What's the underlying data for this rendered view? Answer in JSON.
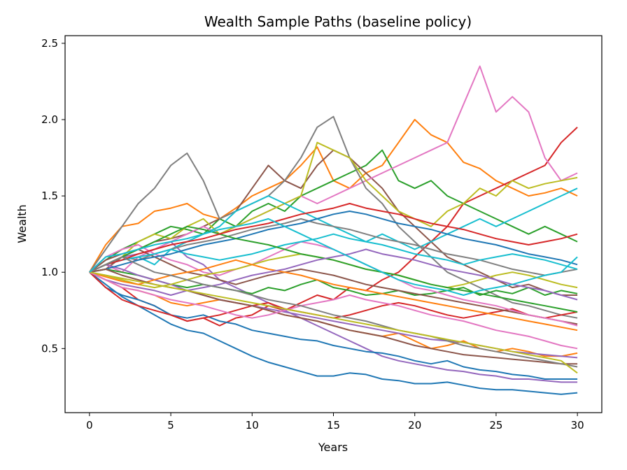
{
  "chart_data": {
    "type": "line",
    "title": "Wealth Sample Paths (baseline policy)",
    "xlabel": "Years",
    "ylabel": "Wealth",
    "xlim": [
      -1.5,
      31.5
    ],
    "ylim": [
      0.08,
      2.55
    ],
    "xticks": [
      0,
      5,
      10,
      15,
      20,
      25,
      30
    ],
    "yticks": [
      0.5,
      1.0,
      1.5,
      2.0,
      2.5
    ],
    "xtick_labels": [
      "0",
      "5",
      "10",
      "15",
      "20",
      "25",
      "30"
    ],
    "ytick_labels": [
      "0.5",
      "1.0",
      "1.5",
      "2.0",
      "2.5"
    ],
    "grid": false,
    "legend": "none",
    "colors": [
      "#1f77b4",
      "#ff7f0e",
      "#2ca02c",
      "#d62728",
      "#9467bd",
      "#8c564b",
      "#e377c2",
      "#7f7f7f",
      "#bcbd22",
      "#17becf"
    ],
    "x": [
      0,
      1,
      2,
      3,
      4,
      5,
      6,
      7,
      8,
      9,
      10,
      11,
      12,
      13,
      14,
      15,
      16,
      17,
      18,
      19,
      20,
      21,
      22,
      23,
      24,
      25,
      26,
      27,
      28,
      29,
      30
    ],
    "series": [
      {
        "values": [
          1.0,
          0.92,
          0.84,
          0.78,
          0.72,
          0.66,
          0.62,
          0.6,
          0.55,
          0.5,
          0.45,
          0.41,
          0.38,
          0.35,
          0.32,
          0.32,
          0.34,
          0.33,
          0.3,
          0.29,
          0.27,
          0.27,
          0.28,
          0.26,
          0.24,
          0.23,
          0.23,
          0.22,
          0.21,
          0.2,
          0.21
        ]
      },
      {
        "values": [
          1.0,
          1.18,
          1.3,
          1.32,
          1.4,
          1.42,
          1.45,
          1.38,
          1.35,
          1.42,
          1.5,
          1.55,
          1.6,
          1.7,
          1.82,
          1.6,
          1.55,
          1.65,
          1.7,
          1.85,
          2.0,
          1.9,
          1.85,
          1.72,
          1.68,
          1.6,
          1.55,
          1.5,
          1.52,
          1.55,
          1.5
        ]
      },
      {
        "values": [
          1.0,
          1.08,
          1.15,
          1.2,
          1.25,
          1.3,
          1.28,
          1.25,
          1.35,
          1.3,
          1.4,
          1.45,
          1.4,
          1.5,
          1.55,
          1.6,
          1.65,
          1.7,
          1.8,
          1.6,
          1.55,
          1.6,
          1.5,
          1.45,
          1.4,
          1.35,
          1.3,
          1.25,
          1.3,
          1.25,
          1.2
        ]
      },
      {
        "values": [
          1.0,
          0.95,
          0.9,
          0.82,
          0.78,
          0.72,
          0.68,
          0.7,
          0.65,
          0.7,
          0.72,
          0.78,
          0.75,
          0.8,
          0.85,
          0.82,
          0.9,
          0.88,
          0.95,
          1.0,
          1.1,
          1.2,
          1.3,
          1.45,
          1.5,
          1.55,
          1.6,
          1.65,
          1.7,
          1.85,
          1.95
        ]
      },
      {
        "values": [
          1.0,
          1.05,
          1.1,
          1.12,
          1.15,
          1.2,
          1.1,
          1.05,
          0.95,
          0.9,
          0.85,
          0.8,
          0.75,
          0.7,
          0.65,
          0.6,
          0.55,
          0.5,
          0.45,
          0.42,
          0.4,
          0.38,
          0.36,
          0.35,
          0.33,
          0.32,
          0.3,
          0.3,
          0.29,
          0.28,
          0.28
        ]
      },
      {
        "values": [
          1.0,
          1.02,
          1.1,
          1.15,
          1.2,
          1.22,
          1.25,
          1.3,
          1.35,
          1.4,
          1.55,
          1.7,
          1.6,
          1.55,
          1.7,
          1.8,
          1.75,
          1.65,
          1.55,
          1.4,
          1.3,
          1.2,
          1.1,
          1.05,
          1.0,
          0.95,
          0.9,
          0.92,
          0.88,
          0.85,
          0.85
        ]
      },
      {
        "values": [
          1.0,
          1.05,
          1.0,
          1.1,
          1.15,
          1.2,
          1.25,
          1.3,
          1.25,
          1.3,
          1.35,
          1.4,
          1.45,
          1.5,
          1.45,
          1.5,
          1.55,
          1.6,
          1.65,
          1.7,
          1.75,
          1.8,
          1.85,
          2.1,
          2.35,
          2.05,
          2.15,
          2.05,
          1.75,
          1.6,
          1.65
        ]
      },
      {
        "values": [
          1.0,
          1.15,
          1.3,
          1.45,
          1.55,
          1.7,
          1.78,
          1.6,
          1.35,
          1.4,
          1.45,
          1.5,
          1.6,
          1.75,
          1.95,
          2.02,
          1.75,
          1.55,
          1.45,
          1.3,
          1.2,
          1.1,
          1.0,
          0.95,
          0.9,
          0.85,
          0.8,
          0.78,
          0.75,
          0.72,
          0.7
        ]
      },
      {
        "values": [
          1.0,
          1.05,
          1.1,
          1.2,
          1.25,
          1.22,
          1.3,
          1.35,
          1.25,
          1.3,
          1.35,
          1.4,
          1.45,
          1.5,
          1.85,
          1.8,
          1.75,
          1.6,
          1.5,
          1.4,
          1.35,
          1.3,
          1.4,
          1.45,
          1.55,
          1.5,
          1.6,
          1.55,
          1.58,
          1.6,
          1.62
        ]
      },
      {
        "values": [
          1.0,
          1.05,
          1.08,
          1.1,
          1.05,
          1.15,
          1.2,
          1.25,
          1.3,
          1.4,
          1.45,
          1.5,
          1.45,
          1.4,
          1.35,
          1.3,
          1.25,
          1.2,
          1.25,
          1.2,
          1.15,
          1.2,
          1.25,
          1.3,
          1.35,
          1.3,
          1.35,
          1.4,
          1.45,
          1.5,
          1.55
        ]
      },
      {
        "values": [
          1.0,
          0.9,
          0.85,
          0.82,
          0.78,
          0.72,
          0.7,
          0.72,
          0.68,
          0.66,
          0.62,
          0.6,
          0.58,
          0.56,
          0.55,
          0.52,
          0.5,
          0.48,
          0.47,
          0.45,
          0.42,
          0.4,
          0.42,
          0.38,
          0.36,
          0.35,
          0.33,
          0.32,
          0.3,
          0.3,
          0.3
        ]
      },
      {
        "values": [
          1.0,
          0.95,
          0.9,
          0.88,
          0.85,
          0.8,
          0.78,
          0.8,
          0.82,
          0.8,
          0.78,
          0.75,
          0.72,
          0.7,
          0.68,
          0.65,
          0.62,
          0.6,
          0.58,
          0.6,
          0.55,
          0.5,
          0.52,
          0.55,
          0.5,
          0.48,
          0.5,
          0.48,
          0.45,
          0.45,
          0.47
        ]
      },
      {
        "values": [
          1.0,
          1.02,
          1.0,
          0.98,
          0.95,
          0.92,
          0.9,
          0.92,
          0.9,
          0.88,
          0.86,
          0.9,
          0.88,
          0.92,
          0.95,
          0.9,
          0.88,
          0.85,
          0.86,
          0.88,
          0.85,
          0.86,
          0.88,
          0.9,
          0.85,
          0.88,
          0.86,
          0.9,
          0.85,
          0.88,
          0.86
        ]
      },
      {
        "values": [
          1.0,
          0.9,
          0.82,
          0.78,
          0.75,
          0.72,
          0.68,
          0.7,
          0.72,
          0.75,
          0.78,
          0.8,
          0.76,
          0.74,
          0.72,
          0.7,
          0.72,
          0.75,
          0.78,
          0.8,
          0.78,
          0.75,
          0.72,
          0.7,
          0.72,
          0.74,
          0.76,
          0.72,
          0.7,
          0.72,
          0.74
        ]
      },
      {
        "values": [
          1.0,
          1.05,
          1.02,
          0.98,
          0.95,
          0.92,
          0.88,
          0.85,
          0.82,
          0.8,
          0.78,
          0.76,
          0.74,
          0.72,
          0.7,
          0.68,
          0.66,
          0.64,
          0.62,
          0.6,
          0.58,
          0.56,
          0.55,
          0.54,
          0.52,
          0.5,
          0.48,
          0.47,
          0.46,
          0.45,
          0.44
        ]
      },
      {
        "values": [
          1.0,
          1.08,
          1.12,
          1.15,
          1.1,
          1.05,
          1.0,
          0.98,
          0.95,
          0.92,
          0.95,
          0.98,
          1.0,
          1.02,
          1.0,
          0.98,
          0.95,
          0.92,
          0.9,
          0.88,
          0.86,
          0.84,
          0.82,
          0.8,
          0.78,
          0.76,
          0.74,
          0.72,
          0.7,
          0.68,
          0.66
        ]
      },
      {
        "values": [
          1.0,
          1.1,
          1.15,
          1.18,
          1.12,
          1.08,
          1.05,
          1.0,
          0.98,
          1.02,
          1.05,
          1.1,
          1.15,
          1.2,
          1.18,
          1.15,
          1.1,
          1.05,
          1.0,
          0.95,
          0.9,
          0.88,
          0.85,
          0.82,
          0.8,
          0.78,
          0.75,
          0.72,
          0.7,
          0.68,
          0.65
        ]
      },
      {
        "values": [
          1.0,
          1.05,
          1.1,
          1.08,
          1.12,
          1.15,
          1.18,
          1.2,
          1.22,
          1.25,
          1.28,
          1.3,
          1.32,
          1.35,
          1.32,
          1.3,
          1.28,
          1.25,
          1.22,
          1.2,
          1.18,
          1.15,
          1.12,
          1.1,
          1.08,
          1.05,
          1.02,
          1.0,
          0.98,
          1.0,
          1.02
        ]
      },
      {
        "values": [
          1.0,
          0.98,
          0.95,
          0.92,
          0.9,
          0.92,
          0.95,
          0.98,
          1.0,
          1.02,
          1.05,
          1.08,
          1.1,
          1.12,
          1.1,
          1.08,
          1.05,
          1.02,
          1.0,
          0.98,
          0.95,
          0.92,
          0.9,
          0.92,
          0.95,
          0.98,
          1.0,
          0.98,
          0.95,
          0.92,
          0.9
        ]
      },
      {
        "values": [
          1.0,
          1.05,
          1.08,
          1.1,
          1.12,
          1.15,
          1.12,
          1.1,
          1.08,
          1.1,
          1.12,
          1.15,
          1.18,
          1.2,
          1.22,
          1.25,
          1.22,
          1.2,
          1.18,
          1.15,
          1.12,
          1.1,
          1.08,
          1.05,
          1.08,
          1.1,
          1.12,
          1.1,
          1.08,
          1.05,
          1.02
        ]
      },
      {
        "values": [
          1.0,
          1.02,
          1.05,
          1.08,
          1.1,
          1.12,
          1.15,
          1.18,
          1.2,
          1.22,
          1.25,
          1.28,
          1.3,
          1.32,
          1.35,
          1.38,
          1.4,
          1.38,
          1.35,
          1.32,
          1.3,
          1.28,
          1.25,
          1.22,
          1.2,
          1.18,
          1.15,
          1.12,
          1.1,
          1.08,
          1.05
        ]
      },
      {
        "values": [
          1.0,
          0.97,
          0.94,
          0.92,
          0.95,
          0.98,
          1.0,
          1.02,
          1.05,
          1.08,
          1.05,
          1.02,
          1.0,
          0.98,
          0.95,
          0.92,
          0.9,
          0.88,
          0.86,
          0.84,
          0.82,
          0.8,
          0.78,
          0.76,
          0.74,
          0.72,
          0.7,
          0.68,
          0.66,
          0.64,
          0.62
        ]
      },
      {
        "values": [
          1.0,
          1.05,
          1.1,
          1.15,
          1.2,
          1.25,
          1.3,
          1.28,
          1.25,
          1.22,
          1.2,
          1.18,
          1.15,
          1.12,
          1.1,
          1.08,
          1.05,
          1.02,
          1.0,
          0.98,
          0.95,
          0.92,
          0.9,
          0.88,
          0.86,
          0.84,
          0.82,
          0.8,
          0.78,
          0.76,
          0.74
        ]
      },
      {
        "values": [
          1.0,
          1.05,
          1.08,
          1.12,
          1.15,
          1.18,
          1.2,
          1.22,
          1.25,
          1.28,
          1.3,
          1.32,
          1.35,
          1.38,
          1.4,
          1.42,
          1.45,
          1.42,
          1.4,
          1.38,
          1.35,
          1.32,
          1.3,
          1.28,
          1.25,
          1.22,
          1.2,
          1.18,
          1.2,
          1.22,
          1.25
        ]
      },
      {
        "values": [
          1.0,
          0.95,
          0.92,
          0.9,
          0.88,
          0.85,
          0.88,
          0.9,
          0.92,
          0.95,
          0.98,
          1.0,
          1.02,
          1.05,
          1.08,
          1.1,
          1.12,
          1.15,
          1.12,
          1.1,
          1.08,
          1.05,
          1.02,
          1.0,
          0.98,
          0.95,
          0.92,
          0.9,
          0.88,
          0.85,
          0.82
        ]
      },
      {
        "values": [
          1.0,
          1.02,
          0.98,
          0.95,
          0.92,
          0.9,
          0.88,
          0.85,
          0.82,
          0.8,
          0.78,
          0.75,
          0.72,
          0.7,
          0.68,
          0.65,
          0.62,
          0.6,
          0.58,
          0.55,
          0.52,
          0.5,
          0.48,
          0.46,
          0.45,
          0.44,
          0.43,
          0.42,
          0.41,
          0.4,
          0.4
        ]
      },
      {
        "values": [
          1.0,
          0.95,
          0.9,
          0.88,
          0.85,
          0.82,
          0.8,
          0.78,
          0.75,
          0.72,
          0.7,
          0.72,
          0.75,
          0.78,
          0.8,
          0.82,
          0.85,
          0.82,
          0.8,
          0.78,
          0.75,
          0.72,
          0.7,
          0.68,
          0.65,
          0.62,
          0.6,
          0.58,
          0.55,
          0.52,
          0.5
        ]
      },
      {
        "values": [
          1.0,
          1.05,
          1.1,
          1.05,
          1.0,
          0.98,
          0.95,
          0.92,
          0.9,
          0.88,
          0.85,
          0.82,
          0.8,
          0.78,
          0.75,
          0.72,
          0.7,
          0.68,
          0.65,
          0.62,
          0.6,
          0.58,
          0.55,
          0.52,
          0.5,
          0.48,
          0.46,
          0.44,
          0.42,
          0.4,
          0.38
        ]
      },
      {
        "values": [
          1.0,
          0.98,
          0.96,
          0.94,
          0.92,
          0.9,
          0.88,
          0.86,
          0.84,
          0.82,
          0.8,
          0.78,
          0.76,
          0.74,
          0.72,
          0.7,
          0.68,
          0.66,
          0.64,
          0.62,
          0.6,
          0.58,
          0.56,
          0.54,
          0.52,
          0.5,
          0.48,
          0.46,
          0.44,
          0.42,
          0.34
        ]
      },
      {
        "values": [
          1.0,
          1.1,
          1.12,
          1.15,
          1.18,
          1.2,
          1.22,
          1.25,
          1.28,
          1.3,
          1.32,
          1.35,
          1.3,
          1.25,
          1.2,
          1.15,
          1.1,
          1.05,
          1.0,
          0.95,
          0.92,
          0.9,
          0.88,
          0.85,
          0.88,
          0.9,
          0.92,
          0.95,
          0.98,
          1.0,
          1.1
        ]
      }
    ]
  }
}
